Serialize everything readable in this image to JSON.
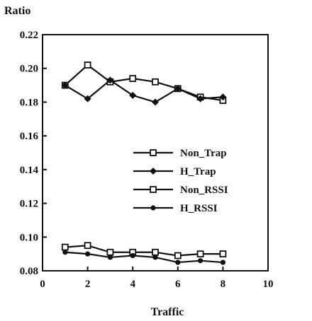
{
  "chart_data": {
    "type": "line",
    "title": "",
    "ylabel": "Ratio",
    "xlabel": "Traffic",
    "xlim": [
      0,
      10
    ],
    "ylim": [
      0.08,
      0.22
    ],
    "x_ticks": [
      "0",
      "2",
      "4",
      "6",
      "8",
      "10"
    ],
    "y_ticks": [
      "0.08",
      "0.10",
      "0.12",
      "0.14",
      "0.16",
      "0.18",
      "0.20",
      "0.22"
    ],
    "grid": false,
    "legend_position": "center-right",
    "series": [
      {
        "name": "Non_Trap",
        "marker": "square-open",
        "x": [
          1,
          2,
          3,
          4,
          5,
          6,
          7,
          8
        ],
        "y": [
          0.19,
          0.202,
          0.192,
          0.194,
          0.192,
          0.188,
          0.183,
          0.181
        ]
      },
      {
        "name": "H_Trap",
        "marker": "diamond-filled",
        "x": [
          1,
          2,
          3,
          4,
          5,
          6,
          7,
          8
        ],
        "y": [
          0.19,
          0.182,
          0.193,
          0.184,
          0.18,
          0.188,
          0.182,
          0.183
        ]
      },
      {
        "name": "Non_RSSI",
        "marker": "square-open",
        "x": [
          1,
          2,
          3,
          4,
          5,
          6,
          7,
          8
        ],
        "y": [
          0.094,
          0.095,
          0.091,
          0.091,
          0.091,
          0.089,
          0.09,
          0.09
        ]
      },
      {
        "name": "H_RSSI",
        "marker": "circle-filled",
        "x": [
          1,
          2,
          3,
          4,
          5,
          6,
          7,
          8
        ],
        "y": [
          0.091,
          0.09,
          0.088,
          0.089,
          0.088,
          0.085,
          0.086,
          0.085
        ]
      }
    ]
  }
}
